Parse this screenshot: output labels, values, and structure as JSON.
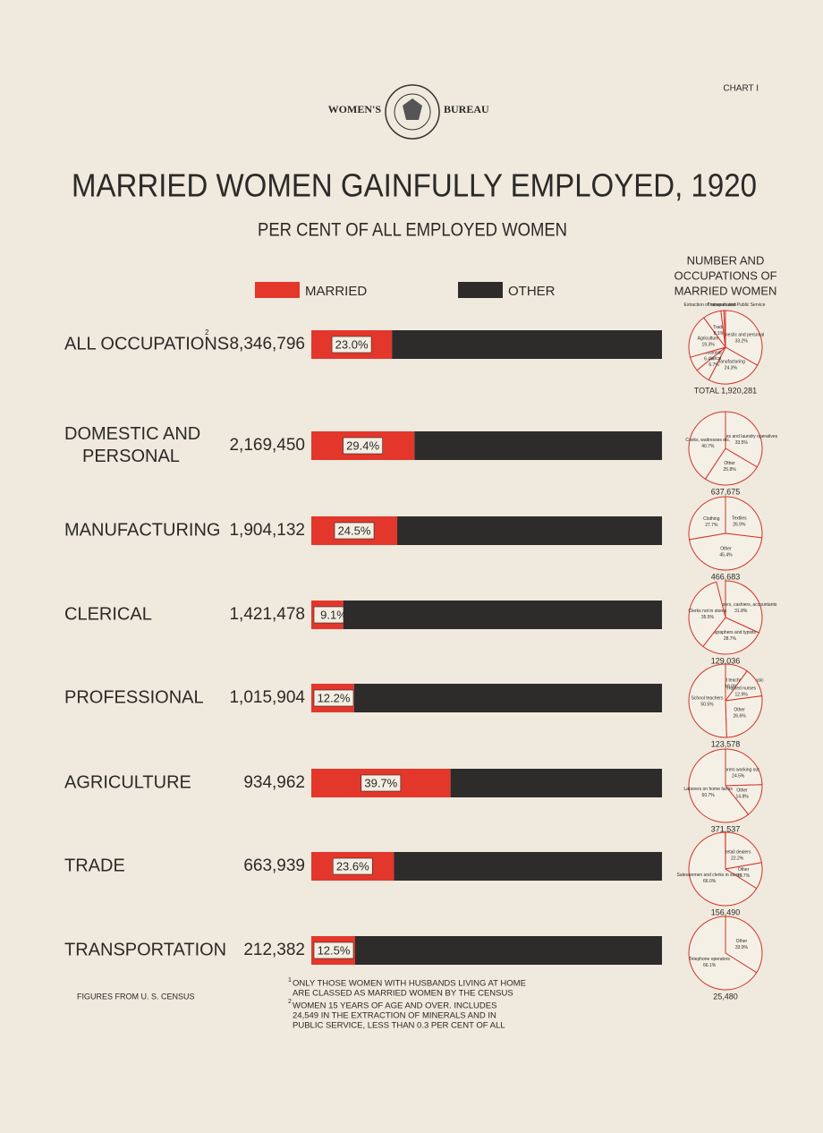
{
  "header": {
    "left": "WOMEN'S",
    "right": "BUREAU",
    "chart_number": "CHART I"
  },
  "pie_column_title": [
    "NUMBER AND",
    "OCCUPATIONS OF",
    "MARRIED WOMEN"
  ],
  "employed_women_labels": [
    "8,346,796",
    "2,169,450",
    "1,904,132",
    "1,421,478",
    "1,015,904",
    "934,962",
    "663,939",
    "212,382"
  ],
  "source": "FIGURES FROM U. S. CENSUS",
  "footnotes": [
    {
      "mark": "1",
      "lines": [
        "ONLY THOSE WOMEN WITH HUSBANDS LIVING AT HOME",
        "ARE CLASSED AS MARRIED WOMEN BY THE CENSUS"
      ]
    },
    {
      "mark": "2",
      "lines": [
        "WOMEN 15 YEARS OF AGE AND OVER. INCLUDES",
        "24,549 IN THE EXTRACTION OF MINERALS AND IN",
        "PUBLIC SERVICE, LESS THAN 0.3 PER CENT OF ALL"
      ]
    }
  ],
  "chart_data": [
    {
      "type": "bar",
      "title": "MARRIED WOMEN GAINFULLY EMPLOYED, 1920",
      "subtitle": "PER CENT OF ALL EMPLOYED WOMEN",
      "orientation": "horizontal",
      "stacked": true,
      "categories": [
        "ALL OCCUPATIONS",
        "DOMESTIC AND PERSONAL",
        "MANUFACTURING",
        "CLERICAL",
        "PROFESSIONAL",
        "AGRICULTURE",
        "TRADE",
        "TRANSPORTATION"
      ],
      "series": [
        {
          "name": "MARRIED",
          "color": "#e3372c",
          "values": [
            23.0,
            29.4,
            24.5,
            9.1,
            12.2,
            39.7,
            23.6,
            12.5
          ],
          "value_labels": [
            "23.0%",
            "29.4%",
            "24.5%",
            "9.1%",
            "12.2%",
            "39.7%",
            "23.6%",
            "12.5%"
          ]
        },
        {
          "name": "OTHER",
          "color": "#2e2c2b",
          "values": [
            77.0,
            70.6,
            75.5,
            90.9,
            87.8,
            60.3,
            76.4,
            87.5
          ]
        }
      ],
      "xlim": [
        0,
        100
      ]
    },
    {
      "type": "pie",
      "title": "TOTAL 1,920,281",
      "color": "#d0342c",
      "categories": [
        "Domestic and personal",
        "Manufacturing",
        "Clerical",
        "Professional",
        "Agriculture",
        "Trade",
        "Transportation",
        "Extraction of minerals and Public Service"
      ],
      "values": [
        33.2,
        24.3,
        6.7,
        6.4,
        19.3,
        8.1,
        1.3,
        0.7
      ],
      "value_labels": [
        "33.2%",
        "24.3%",
        "6.7%",
        "6.4%",
        "19.3%",
        "8.1%",
        null,
        null
      ]
    },
    {
      "type": "pie",
      "title": "637,675",
      "color": "#d0342c",
      "categories": [
        "Laundresses and laundry operatives",
        "Other",
        "Cooks, waitresses etc."
      ],
      "values": [
        33.5,
        25.8,
        40.7
      ],
      "value_labels": [
        "33.5%",
        "25.8%",
        "40.7%"
      ]
    },
    {
      "type": "pie",
      "title": "466,683",
      "color": "#d0342c",
      "categories": [
        "Textiles",
        "Other",
        "Clothing"
      ],
      "values": [
        26.9,
        45.4,
        27.7
      ],
      "value_labels": [
        "26.9%",
        "45.4%",
        "27.7%"
      ]
    },
    {
      "type": "pie",
      "title": "129,036",
      "color": "#d0342c",
      "categories": [
        "Bookkeepers, cashiers, accountants",
        "Stenographers and typists",
        "Clerks not in stores"
      ],
      "values": [
        31.8,
        28.7,
        35.5
      ],
      "value_labels": [
        "31.8%",
        "28.7%",
        "35.5%"
      ]
    },
    {
      "type": "pie",
      "title": "123,578",
      "color": "#d0342c",
      "categories": [
        "Musicians and teachers of music",
        "Trained nurses",
        "Other",
        "School teachers"
      ],
      "values": [
        10.0,
        12.9,
        26.6,
        50.5
      ],
      "value_labels": [
        "10.0%",
        "12.9%",
        "26.6%",
        "50.5%"
      ]
    },
    {
      "type": "pie",
      "title": "371,537",
      "color": "#d0342c",
      "categories": [
        "Laborers working out",
        "Other",
        "Laborers on home farms"
      ],
      "values": [
        24.5,
        14.8,
        60.7
      ],
      "value_labels": [
        "24.5%",
        "14.8%",
        "60.7%"
      ]
    },
    {
      "type": "pie",
      "title": "156,490",
      "color": "#d0342c",
      "categories": [
        "Retail dealers",
        "Other",
        "Saleswomen and clerks in stores"
      ],
      "values": [
        22.2,
        11.7,
        66.0
      ],
      "value_labels": [
        "22.2%",
        "11.7%",
        "66.0%"
      ]
    },
    {
      "type": "pie",
      "title": "25,480",
      "color": "#d0342c",
      "categories": [
        "Other",
        "Telephone operators"
      ],
      "values": [
        33.9,
        66.1
      ],
      "value_labels": [
        "33.9%",
        "66.1%"
      ]
    }
  ]
}
